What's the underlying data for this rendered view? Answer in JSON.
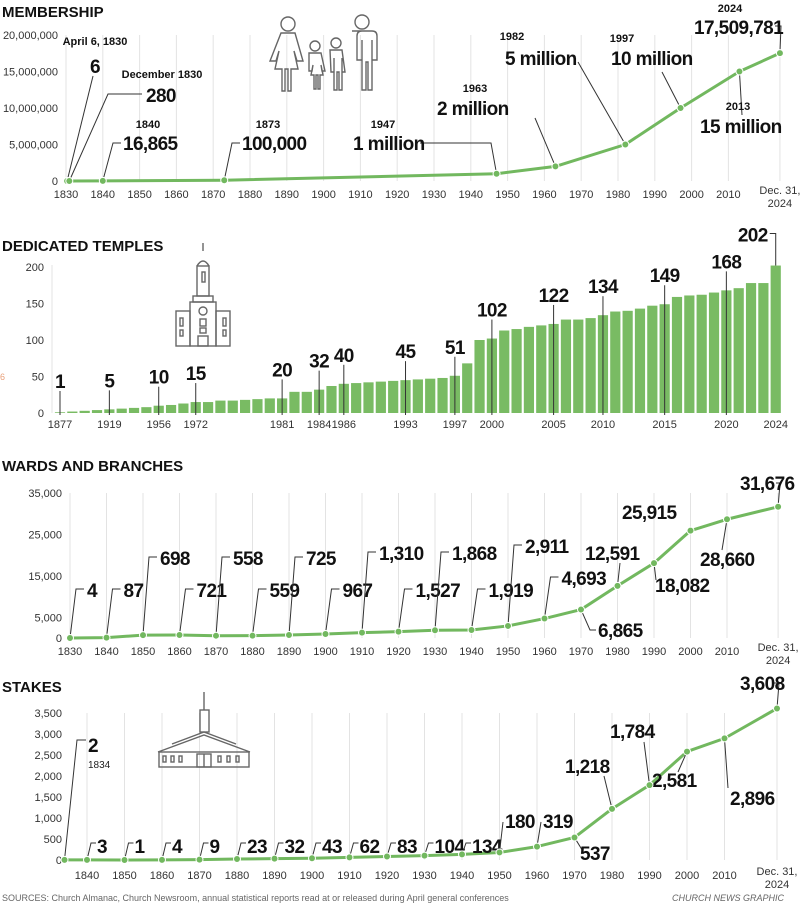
{
  "colors": {
    "line": "#72b85f",
    "bar": "#79bb63",
    "text": "#111111",
    "stray": "#e8a07a"
  },
  "membership": {
    "title": "MEMBERSHIP",
    "y_ticks": [
      0,
      5000000,
      10000000,
      15000000,
      20000000
    ],
    "y_tick_labels": [
      "0",
      "5,000,000",
      "10,000,000",
      "15,000,000",
      "20,000,000"
    ],
    "x_ticks": [
      1830,
      1840,
      1850,
      1860,
      1870,
      1880,
      1890,
      1900,
      1910,
      1920,
      1930,
      1940,
      1950,
      1960,
      1970,
      1980,
      1990,
      2000,
      2010
    ],
    "x_tick_labels": [
      "1830",
      "1840",
      "1850",
      "1860",
      "1870",
      "1880",
      "1890",
      "1900",
      "1910",
      "1920",
      "1930",
      "1940",
      "1950",
      "1960",
      "1970",
      "1980",
      "1990",
      "2000",
      "2010"
    ],
    "x_end_label": [
      "Dec. 31,",
      "2024"
    ],
    "points": [
      {
        "x": 1830.3,
        "y": 6,
        "value": "6",
        "date": "April 6, 1830"
      },
      {
        "x": 1830.9,
        "y": 280,
        "value": "280",
        "date": "December 1830"
      },
      {
        "x": 1840,
        "y": 16865,
        "value": "16,865",
        "date": "1840"
      },
      {
        "x": 1873,
        "y": 100000,
        "value": "100,000",
        "date": "1873"
      },
      {
        "x": 1947,
        "y": 1000000,
        "value": "1 million",
        "date": "1947"
      },
      {
        "x": 1963,
        "y": 2000000,
        "value": "2 million",
        "date": "1963"
      },
      {
        "x": 1982,
        "y": 5000000,
        "value": "5 million",
        "date": "1982"
      },
      {
        "x": 1997,
        "y": 10000000,
        "value": "10 million",
        "date": "1997"
      },
      {
        "x": 2013,
        "y": 15000000,
        "value": "15 million",
        "date": "2013"
      },
      {
        "x": 2024,
        "y": 17509781,
        "value": "17,509,781",
        "date": "2024"
      }
    ]
  },
  "temples": {
    "title": "DEDICATED TEMPLES",
    "stray_mark": "6",
    "y_ticks": [
      0,
      50,
      100,
      150,
      200
    ],
    "y_tick_labels": [
      "0",
      "50",
      "100",
      "150",
      "200"
    ],
    "bars": [
      1,
      2,
      3,
      4,
      5,
      6,
      7,
      8,
      10,
      11,
      13,
      15,
      15,
      17,
      17,
      18,
      19,
      20,
      20,
      29,
      29,
      32,
      37,
      40,
      41,
      42,
      43,
      44,
      45,
      46,
      47,
      48,
      51,
      68,
      100,
      102,
      113,
      115,
      118,
      120,
      122,
      128,
      128,
      130,
      134,
      139,
      140,
      143,
      147,
      149,
      159,
      161,
      162,
      165,
      168,
      171,
      178,
      178,
      202
    ],
    "annotations": [
      {
        "bar": 0,
        "year": "1877",
        "value": "1"
      },
      {
        "bar": 4,
        "year": "1919",
        "value": "5"
      },
      {
        "bar": 8,
        "year": "1956",
        "value": "10"
      },
      {
        "bar": 11,
        "year": "1972",
        "value": "15"
      },
      {
        "bar": 18,
        "year": "1981",
        "value": "20"
      },
      {
        "bar": 21,
        "year": "1984",
        "value": "32"
      },
      {
        "bar": 23,
        "year": "1986",
        "value": "40"
      },
      {
        "bar": 28,
        "year": "1993",
        "value": "45"
      },
      {
        "bar": 32,
        "year": "1997",
        "value": "51"
      },
      {
        "bar": 35,
        "year": "2000",
        "value": "102"
      },
      {
        "bar": 40,
        "year": "2005",
        "value": "122"
      },
      {
        "bar": 44,
        "year": "2010",
        "value": "134"
      },
      {
        "bar": 49,
        "year": "2015",
        "value": "149"
      },
      {
        "bar": 54,
        "year": "2020",
        "value": "168"
      },
      {
        "bar": 58,
        "year": "2024",
        "value": "202"
      }
    ]
  },
  "wards": {
    "title": "WARDS AND BRANCHES",
    "y_ticks": [
      0,
      5000,
      15000,
      25000,
      35000
    ],
    "y_tick_labels": [
      "0",
      "5,000",
      "15,000",
      "25,000",
      "35,000"
    ],
    "x_ticks": [
      1830,
      1840,
      1850,
      1860,
      1870,
      1880,
      1890,
      1900,
      1910,
      1920,
      1930,
      1940,
      1950,
      1960,
      1970,
      1980,
      1990,
      2000,
      2010
    ],
    "x_tick_labels": [
      "1830",
      "1840",
      "1850",
      "1860",
      "1870",
      "1880",
      "1890",
      "1900",
      "1910",
      "1920",
      "1930",
      "1940",
      "1950",
      "1960",
      "1970",
      "1980",
      "1990",
      "2000",
      "2010"
    ],
    "x_end_label": [
      "Dec. 31,",
      "2024"
    ],
    "points": [
      {
        "x": 1830,
        "y": 4,
        "value": "4"
      },
      {
        "x": 1840,
        "y": 87,
        "value": "87"
      },
      {
        "x": 1850,
        "y": 698,
        "value": "698"
      },
      {
        "x": 1860,
        "y": 721,
        "value": "721"
      },
      {
        "x": 1870,
        "y": 558,
        "value": "558"
      },
      {
        "x": 1880,
        "y": 559,
        "value": "559"
      },
      {
        "x": 1890,
        "y": 725,
        "value": "725"
      },
      {
        "x": 1900,
        "y": 967,
        "value": "967"
      },
      {
        "x": 1910,
        "y": 1310,
        "value": "1,310"
      },
      {
        "x": 1920,
        "y": 1527,
        "value": "1,527"
      },
      {
        "x": 1930,
        "y": 1868,
        "value": "1,868"
      },
      {
        "x": 1940,
        "y": 1919,
        "value": "1,919"
      },
      {
        "x": 1950,
        "y": 2911,
        "value": "2,911"
      },
      {
        "x": 1960,
        "y": 4693,
        "value": "4,693"
      },
      {
        "x": 1970,
        "y": 6865,
        "value": "6,865"
      },
      {
        "x": 1980,
        "y": 12591,
        "value": "12,591"
      },
      {
        "x": 1990,
        "y": 18082,
        "value": "18,082"
      },
      {
        "x": 2000,
        "y": 25915,
        "value": "25,915"
      },
      {
        "x": 2010,
        "y": 28660,
        "value": "28,660"
      },
      {
        "x": 2024,
        "y": 31676,
        "value": "31,676"
      }
    ]
  },
  "stakes": {
    "title": "STAKES",
    "y_ticks": [
      0,
      500,
      1000,
      1500,
      2000,
      2500,
      3000,
      3500
    ],
    "y_tick_labels": [
      "0",
      "500",
      "1,000",
      "1,500",
      "2,000",
      "2,500",
      "3,000",
      "3,500"
    ],
    "x_ticks": [
      1840,
      1850,
      1860,
      1870,
      1880,
      1890,
      1900,
      1910,
      1920,
      1930,
      1940,
      1950,
      1960,
      1970,
      1980,
      1990,
      2000,
      2010
    ],
    "x_tick_labels": [
      "1840",
      "1850",
      "1860",
      "1870",
      "1880",
      "1890",
      "1900",
      "1910",
      "1920",
      "1930",
      "1940",
      "1950",
      "1960",
      "1970",
      "1980",
      "1990",
      "2000",
      "2010"
    ],
    "x_end_label": [
      "Dec. 31,",
      "2024"
    ],
    "first_point_year": "1834",
    "points": [
      {
        "x": 1834,
        "y": 2,
        "value": "2"
      },
      {
        "x": 1840,
        "y": 3,
        "value": "3"
      },
      {
        "x": 1850,
        "y": 1,
        "value": "1"
      },
      {
        "x": 1860,
        "y": 4,
        "value": "4"
      },
      {
        "x": 1870,
        "y": 9,
        "value": "9"
      },
      {
        "x": 1880,
        "y": 23,
        "value": "23"
      },
      {
        "x": 1890,
        "y": 32,
        "value": "32"
      },
      {
        "x": 1900,
        "y": 43,
        "value": "43"
      },
      {
        "x": 1910,
        "y": 62,
        "value": "62"
      },
      {
        "x": 1920,
        "y": 83,
        "value": "83"
      },
      {
        "x": 1930,
        "y": 104,
        "value": "104"
      },
      {
        "x": 1940,
        "y": 134,
        "value": "134"
      },
      {
        "x": 1950,
        "y": 180,
        "value": "180"
      },
      {
        "x": 1960,
        "y": 319,
        "value": "319"
      },
      {
        "x": 1970,
        "y": 537,
        "value": "537"
      },
      {
        "x": 1980,
        "y": 1218,
        "value": "1,218"
      },
      {
        "x": 1990,
        "y": 1784,
        "value": "1,784"
      },
      {
        "x": 2000,
        "y": 2581,
        "value": "2,581"
      },
      {
        "x": 2010,
        "y": 2896,
        "value": "2,896"
      },
      {
        "x": 2024,
        "y": 3608,
        "value": "3,608"
      }
    ]
  },
  "footer": {
    "sources": "SOURCES: Church Almanac, Church Newsroom, annual statistical reports read at or released during April general conferences",
    "credit": "CHURCH NEWS GRAPHIC"
  }
}
